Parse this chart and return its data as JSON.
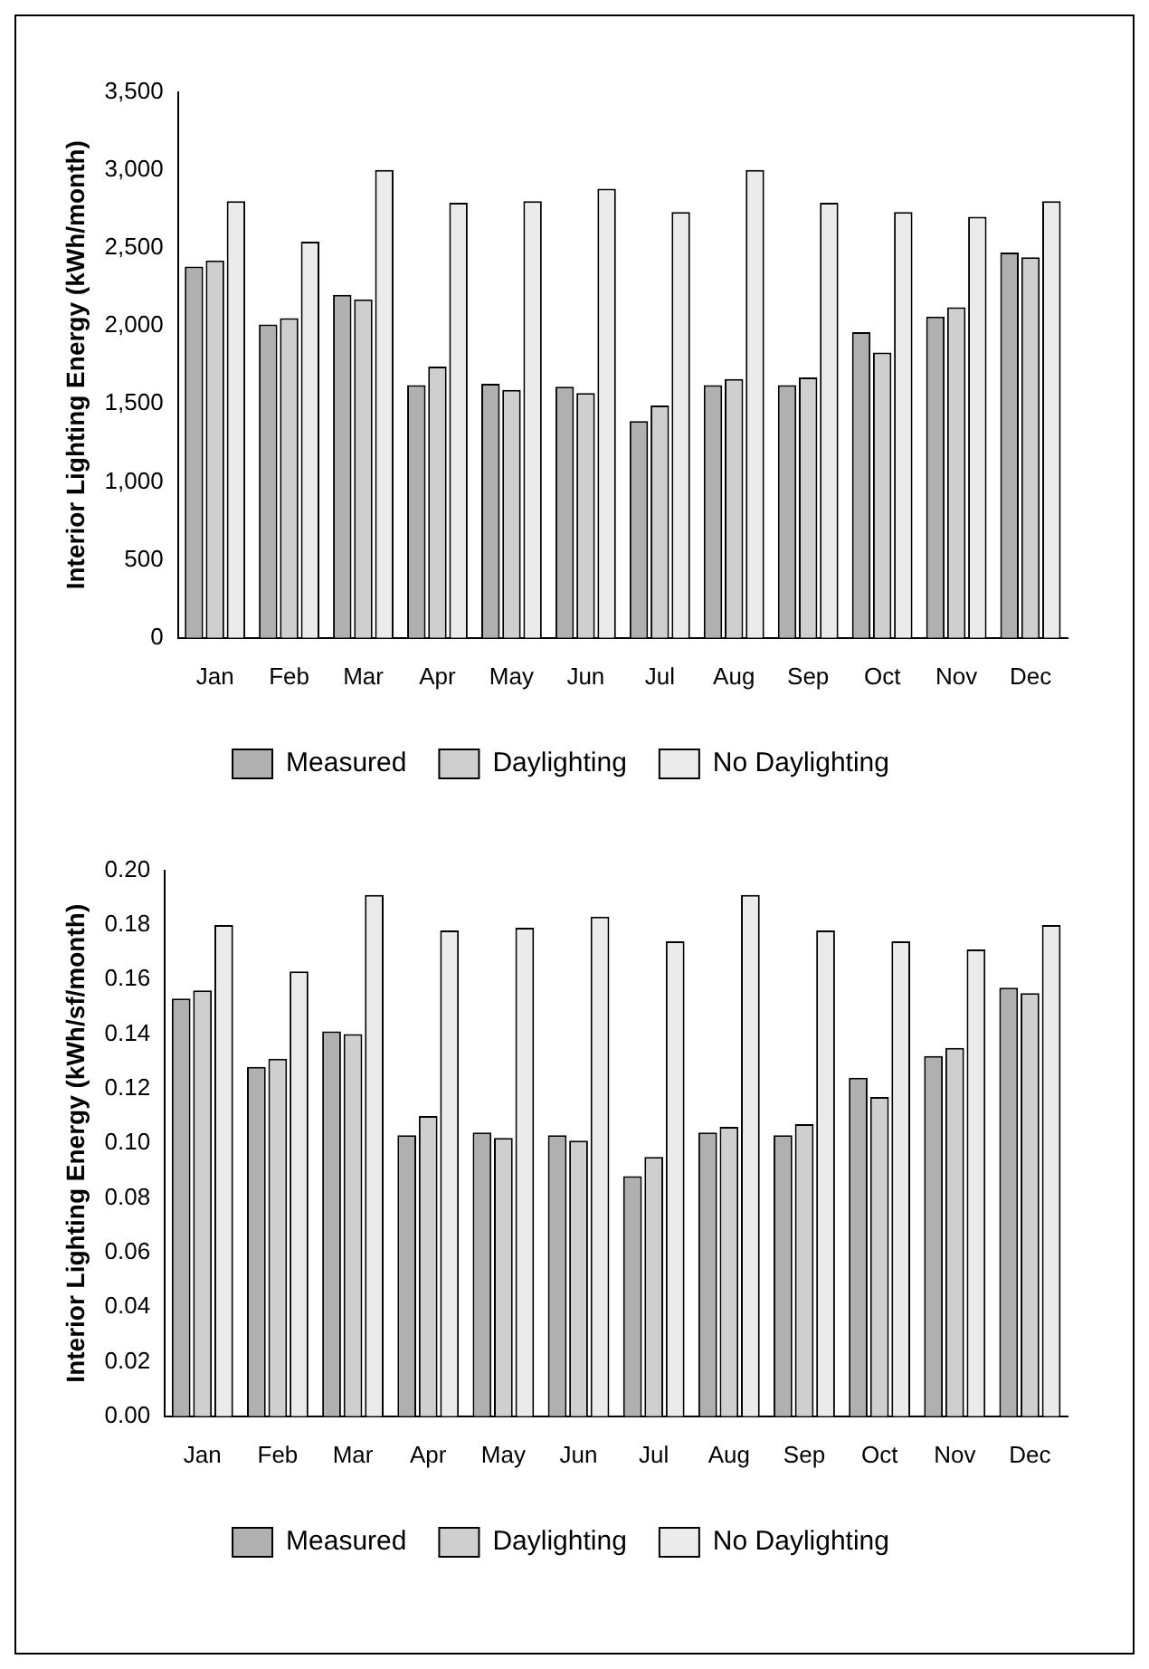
{
  "chart_data": [
    {
      "type": "bar",
      "ylabel": "Interior Lighting Energy (kWh/month)",
      "categories": [
        "Jan",
        "Feb",
        "Mar",
        "Apr",
        "May",
        "Jun",
        "Jul",
        "Aug",
        "Sep",
        "Oct",
        "Nov",
        "Dec"
      ],
      "series": [
        {
          "name": "Measured",
          "color": "#b0b0b0",
          "values": [
            2380,
            2010,
            2200,
            1620,
            1630,
            1610,
            1390,
            1620,
            1620,
            1960,
            2060,
            2470
          ]
        },
        {
          "name": "Daylighting",
          "color": "#cfcfcf",
          "values": [
            2420,
            2050,
            2170,
            1740,
            1590,
            1570,
            1490,
            1660,
            1670,
            1830,
            2120,
            2440
          ]
        },
        {
          "name": "No Daylighting",
          "color": "#ebebeb",
          "values": [
            2800,
            2540,
            3000,
            2790,
            2800,
            2880,
            2730,
            3000,
            2790,
            2730,
            2700,
            2800
          ]
        }
      ],
      "ylim": [
        0,
        3500
      ],
      "yticks": [
        {
          "value": 0,
          "label": "0"
        },
        {
          "value": 500,
          "label": "500"
        },
        {
          "value": 1000,
          "label": "1,000"
        },
        {
          "value": 1500,
          "label": "1,500"
        },
        {
          "value": 2000,
          "label": "2,000"
        },
        {
          "value": 2500,
          "label": "2,500"
        },
        {
          "value": 3000,
          "label": "3,000"
        },
        {
          "value": 3500,
          "label": "3,500"
        }
      ],
      "grid": false,
      "legend": "bottom"
    },
    {
      "type": "bar",
      "ylabel": "Interior Lighting Energy (kWh/sf/month)",
      "categories": [
        "Jan",
        "Feb",
        "Mar",
        "Apr",
        "May",
        "Jun",
        "Jul",
        "Aug",
        "Sep",
        "Oct",
        "Nov",
        "Dec"
      ],
      "series": [
        {
          "name": "Measured",
          "color": "#b0b0b0",
          "values": [
            0.153,
            0.128,
            0.141,
            0.103,
            0.104,
            0.103,
            0.088,
            0.104,
            0.103,
            0.124,
            0.132,
            0.157
          ]
        },
        {
          "name": "Daylighting",
          "color": "#cfcfcf",
          "values": [
            0.156,
            0.131,
            0.14,
            0.11,
            0.102,
            0.101,
            0.095,
            0.106,
            0.107,
            0.117,
            0.135,
            0.155
          ]
        },
        {
          "name": "No Daylighting",
          "color": "#ebebeb",
          "values": [
            0.18,
            0.163,
            0.191,
            0.178,
            0.179,
            0.183,
            0.174,
            0.191,
            0.178,
            0.174,
            0.171,
            0.18
          ]
        }
      ],
      "ylim": [
        0,
        0.2
      ],
      "yticks": [
        {
          "value": 0,
          "label": "0.00"
        },
        {
          "value": 0.02,
          "label": "0.02"
        },
        {
          "value": 0.04,
          "label": "0.04"
        },
        {
          "value": 0.06,
          "label": "0.06"
        },
        {
          "value": 0.08,
          "label": "0.08"
        },
        {
          "value": 0.1,
          "label": "0.10"
        },
        {
          "value": 0.12,
          "label": "0.12"
        },
        {
          "value": 0.14,
          "label": "0.14"
        },
        {
          "value": 0.16,
          "label": "0.16"
        },
        {
          "value": 0.18,
          "label": "0.18"
        },
        {
          "value": 0.2,
          "label": "0.20"
        }
      ],
      "grid": false,
      "legend": "bottom"
    }
  ]
}
